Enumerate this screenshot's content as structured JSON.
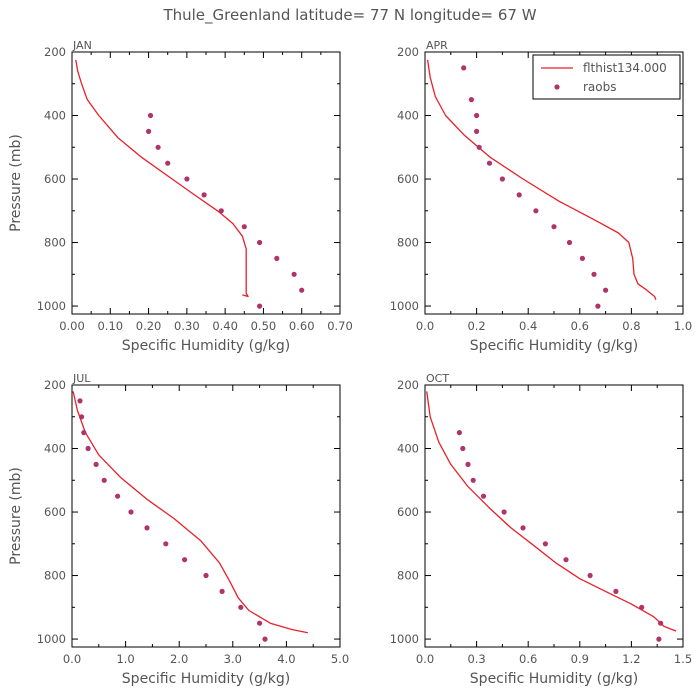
{
  "figure_title": "Thule_Greenland  latitude= 77 N longitude= 67 W",
  "colors": {
    "model": "#e8202a",
    "obs": "#b0336a",
    "text": "#555555",
    "axis": "#000000"
  },
  "legend": {
    "model_label": "flthist134.000",
    "obs_label": "raobs",
    "panel_index": 1,
    "placement": "top-right"
  },
  "chart_data": [
    {
      "type": "line",
      "panel_title": "JAN",
      "xlabel": "Specific Humidity (g/kg)",
      "ylabel": "Pressure (mb)",
      "xlim": [
        0,
        0.7
      ],
      "xticks": [
        "0.00",
        "0.10",
        "0.20",
        "0.30",
        "0.40",
        "0.50",
        "0.60",
        "0.70"
      ],
      "ylim": [
        200,
        1025
      ],
      "y_inverted": true,
      "yticks": [
        "200",
        "400",
        "600",
        "800",
        "1000"
      ],
      "series": [
        {
          "name": "flthist134.000",
          "kind": "line",
          "points": [
            [
              0.01,
              225
            ],
            [
              0.015,
              260
            ],
            [
              0.025,
              300
            ],
            [
              0.04,
              350
            ],
            [
              0.07,
              400
            ],
            [
              0.12,
              470
            ],
            [
              0.18,
              530
            ],
            [
              0.25,
              590
            ],
            [
              0.32,
              650
            ],
            [
              0.38,
              700
            ],
            [
              0.42,
              740
            ],
            [
              0.445,
              780
            ],
            [
              0.455,
              820
            ],
            [
              0.455,
              860
            ],
            [
              0.455,
              900
            ],
            [
              0.455,
              930
            ],
            [
              0.455,
              960
            ],
            [
              0.46,
              970
            ],
            [
              0.445,
              965
            ]
          ]
        },
        {
          "name": "raobs",
          "kind": "scatter",
          "points": [
            [
              0.205,
              400
            ],
            [
              0.2,
              450
            ],
            [
              0.225,
              500
            ],
            [
              0.25,
              550
            ],
            [
              0.3,
              600
            ],
            [
              0.345,
              650
            ],
            [
              0.39,
              700
            ],
            [
              0.45,
              750
            ],
            [
              0.49,
              800
            ],
            [
              0.535,
              850
            ],
            [
              0.58,
              900
            ],
            [
              0.6,
              950
            ],
            [
              0.49,
              1000
            ]
          ]
        }
      ]
    },
    {
      "type": "line",
      "panel_title": "APR",
      "xlabel": "Specific Humidity (g/kg)",
      "ylabel": "",
      "xlim": [
        0,
        1.0
      ],
      "xticks": [
        "0.0",
        "0.2",
        "0.4",
        "0.6",
        "0.8",
        "1.0"
      ],
      "ylim": [
        200,
        1025
      ],
      "y_inverted": true,
      "yticks": [
        "200",
        "400",
        "600",
        "800",
        "1000"
      ],
      "series": [
        {
          "name": "flthist134.000",
          "kind": "line",
          "points": [
            [
              0.01,
              225
            ],
            [
              0.02,
              280
            ],
            [
              0.04,
              340
            ],
            [
              0.08,
              400
            ],
            [
              0.15,
              460
            ],
            [
              0.25,
              530
            ],
            [
              0.38,
              600
            ],
            [
              0.52,
              670
            ],
            [
              0.66,
              730
            ],
            [
              0.75,
              770
            ],
            [
              0.79,
              800
            ],
            [
              0.805,
              850
            ],
            [
              0.81,
              900
            ],
            [
              0.825,
              930
            ],
            [
              0.86,
              950
            ],
            [
              0.89,
              970
            ],
            [
              0.895,
              980
            ]
          ]
        },
        {
          "name": "raobs",
          "kind": "scatter",
          "points": [
            [
              0.15,
              250
            ],
            [
              0.18,
              350
            ],
            [
              0.2,
              400
            ],
            [
              0.2,
              450
            ],
            [
              0.21,
              500
            ],
            [
              0.25,
              550
            ],
            [
              0.3,
              600
            ],
            [
              0.365,
              650
            ],
            [
              0.43,
              700
            ],
            [
              0.5,
              750
            ],
            [
              0.56,
              800
            ],
            [
              0.61,
              850
            ],
            [
              0.655,
              900
            ],
            [
              0.7,
              950
            ],
            [
              0.67,
              1000
            ]
          ]
        }
      ]
    },
    {
      "type": "line",
      "panel_title": "JUL",
      "xlabel": "Specific Humidity (g/kg)",
      "ylabel": "Pressure (mb)",
      "xlim": [
        0,
        5.0
      ],
      "xticks": [
        "0.0",
        "1.0",
        "2.0",
        "3.0",
        "4.0",
        "5.0"
      ],
      "ylim": [
        200,
        1025
      ],
      "y_inverted": true,
      "yticks": [
        "200",
        "400",
        "600",
        "800",
        "1000"
      ],
      "series": [
        {
          "name": "flthist134.000",
          "kind": "line",
          "points": [
            [
              0.02,
              220
            ],
            [
              0.1,
              280
            ],
            [
              0.25,
              350
            ],
            [
              0.5,
              420
            ],
            [
              0.9,
              490
            ],
            [
              1.4,
              560
            ],
            [
              1.9,
              620
            ],
            [
              2.4,
              690
            ],
            [
              2.75,
              760
            ],
            [
              2.95,
              820
            ],
            [
              3.1,
              870
            ],
            [
              3.3,
              910
            ],
            [
              3.7,
              950
            ],
            [
              4.1,
              970
            ],
            [
              4.4,
              980
            ]
          ]
        },
        {
          "name": "raobs",
          "kind": "scatter",
          "points": [
            [
              0.15,
              250
            ],
            [
              0.18,
              300
            ],
            [
              0.22,
              350
            ],
            [
              0.3,
              400
            ],
            [
              0.45,
              450
            ],
            [
              0.6,
              500
            ],
            [
              0.85,
              550
            ],
            [
              1.1,
              600
            ],
            [
              1.4,
              650
            ],
            [
              1.75,
              700
            ],
            [
              2.1,
              750
            ],
            [
              2.5,
              800
            ],
            [
              2.8,
              850
            ],
            [
              3.15,
              900
            ],
            [
              3.5,
              950
            ],
            [
              3.6,
              1000
            ]
          ]
        }
      ]
    },
    {
      "type": "line",
      "panel_title": "OCT",
      "xlabel": "Specific Humidity (g/kg)",
      "ylabel": "",
      "xlim": [
        0,
        1.5
      ],
      "xticks": [
        "0.0",
        "0.3",
        "0.6",
        "0.9",
        "1.2",
        "1.5"
      ],
      "ylim": [
        200,
        1025
      ],
      "y_inverted": true,
      "yticks": [
        "200",
        "400",
        "600",
        "800",
        "1000"
      ],
      "series": [
        {
          "name": "flthist134.000",
          "kind": "line",
          "points": [
            [
              0.01,
              220
            ],
            [
              0.03,
              300
            ],
            [
              0.08,
              380
            ],
            [
              0.15,
              450
            ],
            [
              0.25,
              520
            ],
            [
              0.38,
              590
            ],
            [
              0.5,
              650
            ],
            [
              0.62,
              700
            ],
            [
              0.76,
              760
            ],
            [
              0.9,
              810
            ],
            [
              1.05,
              850
            ],
            [
              1.2,
              890
            ],
            [
              1.33,
              930
            ],
            [
              1.39,
              960
            ],
            [
              1.46,
              975
            ]
          ]
        },
        {
          "name": "raobs",
          "kind": "scatter",
          "points": [
            [
              0.2,
              350
            ],
            [
              0.22,
              400
            ],
            [
              0.25,
              450
            ],
            [
              0.28,
              500
            ],
            [
              0.34,
              550
            ],
            [
              0.46,
              600
            ],
            [
              0.57,
              650
            ],
            [
              0.7,
              700
            ],
            [
              0.82,
              750
            ],
            [
              0.96,
              800
            ],
            [
              1.11,
              850
            ],
            [
              1.26,
              900
            ],
            [
              1.37,
              950
            ],
            [
              1.36,
              1000
            ]
          ]
        }
      ]
    }
  ]
}
